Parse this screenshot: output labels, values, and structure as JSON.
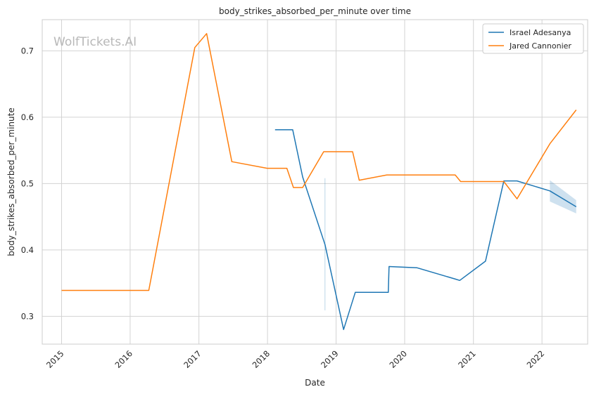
{
  "chart_data": {
    "type": "line",
    "title": "body_strikes_absorbed_per_minute over time",
    "xlabel": "Date",
    "ylabel": "body_strikes_absorbed_per_minute",
    "watermark": "WolfTickets.AI",
    "x_ticks": [
      "2015",
      "2016",
      "2017",
      "2018",
      "2019",
      "2020",
      "2021",
      "2022"
    ],
    "y_ticks": [
      "0.3",
      "0.4",
      "0.5",
      "0.6",
      "0.7"
    ],
    "xlim": [
      "2014-09-20",
      "2022-09-01"
    ],
    "ylim": [
      0.258,
      0.747
    ],
    "grid": true,
    "legend_position": "top-right",
    "series": [
      {
        "name": "Israel Adesanya",
        "color": "#1f77b4",
        "points": [
          [
            "2018-02-10",
            0.581
          ],
          [
            "2018-05-15",
            0.581
          ],
          [
            "2018-07-07",
            0.51
          ],
          [
            "2018-11-03",
            0.408
          ],
          [
            "2019-02-10",
            0.28
          ],
          [
            "2019-04-13",
            0.336
          ],
          [
            "2019-10-06",
            0.336
          ],
          [
            "2019-10-10",
            0.375
          ],
          [
            "2020-03-07",
            0.373
          ],
          [
            "2020-09-27",
            0.356
          ],
          [
            "2020-10-20",
            0.354
          ],
          [
            "2021-03-06",
            0.383
          ],
          [
            "2021-06-12",
            0.504
          ],
          [
            "2021-08-21",
            0.504
          ],
          [
            "2022-02-12",
            0.489
          ],
          [
            "2022-07-02",
            0.465
          ]
        ],
        "band": [
          [
            "2022-02-12",
            0.473,
            0.505
          ],
          [
            "2022-07-02",
            0.455,
            0.475
          ]
        ],
        "spike": [
          "2018-11-03",
          0.309,
          0.508
        ]
      },
      {
        "name": "Jared Cannonier",
        "color": "#ff7f0e",
        "points": [
          [
            "2015-01-01",
            0.339
          ],
          [
            "2016-04-09",
            0.339
          ],
          [
            "2016-12-10",
            0.705
          ],
          [
            "2017-02-11",
            0.726
          ],
          [
            "2017-06-25",
            0.533
          ],
          [
            "2017-12-30",
            0.523
          ],
          [
            "2018-04-14",
            0.523
          ],
          [
            "2018-05-19",
            0.494
          ],
          [
            "2018-07-07",
            0.494
          ],
          [
            "2018-10-27",
            0.548
          ],
          [
            "2019-03-30",
            0.548
          ],
          [
            "2019-05-04",
            0.505
          ],
          [
            "2019-09-28",
            0.513
          ],
          [
            "2020-09-26",
            0.513
          ],
          [
            "2020-10-25",
            0.503
          ],
          [
            "2021-06-12",
            0.503
          ],
          [
            "2021-08-21",
            0.477
          ],
          [
            "2022-02-12",
            0.56
          ],
          [
            "2022-07-02",
            0.611
          ]
        ]
      }
    ]
  }
}
